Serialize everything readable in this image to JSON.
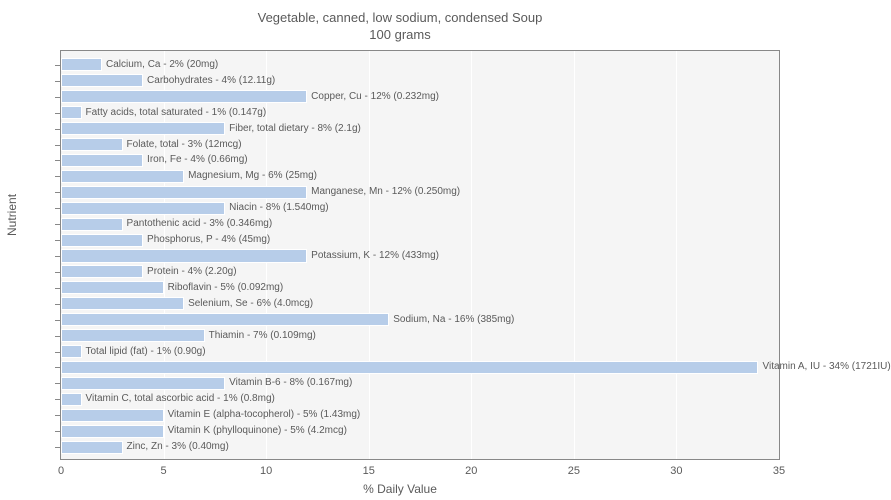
{
  "chart": {
    "type": "horizontal-bar",
    "title_line1": "Vegetable, canned, low sodium, condensed Soup",
    "title_line2": "100 grams",
    "title_fontsize": 13,
    "title_color": "#5a5a5a",
    "xlabel": "% Daily Value",
    "ylabel": "Nutrient",
    "label_fontsize": 12,
    "label_color": "#5a5a5a",
    "xlim": [
      0,
      35
    ],
    "xtick_step": 5,
    "xticks": [
      0,
      5,
      10,
      15,
      20,
      25,
      30,
      35
    ],
    "background_color": "#f5f5f5",
    "grid_color": "#ffffff",
    "bar_color": "#b7cde9",
    "bar_border_color": "#ffffff",
    "tick_fontsize": 11,
    "barlabel_fontsize": 10,
    "bars": [
      {
        "label": "Calcium, Ca - 2% (20mg)",
        "value": 2
      },
      {
        "label": "Carbohydrates - 4% (12.11g)",
        "value": 4
      },
      {
        "label": "Copper, Cu - 12% (0.232mg)",
        "value": 12
      },
      {
        "label": "Fatty acids, total saturated - 1% (0.147g)",
        "value": 1
      },
      {
        "label": "Fiber, total dietary - 8% (2.1g)",
        "value": 8
      },
      {
        "label": "Folate, total - 3% (12mcg)",
        "value": 3
      },
      {
        "label": "Iron, Fe - 4% (0.66mg)",
        "value": 4
      },
      {
        "label": "Magnesium, Mg - 6% (25mg)",
        "value": 6
      },
      {
        "label": "Manganese, Mn - 12% (0.250mg)",
        "value": 12
      },
      {
        "label": "Niacin - 8% (1.540mg)",
        "value": 8
      },
      {
        "label": "Pantothenic acid - 3% (0.346mg)",
        "value": 3
      },
      {
        "label": "Phosphorus, P - 4% (45mg)",
        "value": 4
      },
      {
        "label": "Potassium, K - 12% (433mg)",
        "value": 12
      },
      {
        "label": "Protein - 4% (2.20g)",
        "value": 4
      },
      {
        "label": "Riboflavin - 5% (0.092mg)",
        "value": 5
      },
      {
        "label": "Selenium, Se - 6% (4.0mcg)",
        "value": 6
      },
      {
        "label": "Sodium, Na - 16% (385mg)",
        "value": 16
      },
      {
        "label": "Thiamin - 7% (0.109mg)",
        "value": 7
      },
      {
        "label": "Total lipid (fat) - 1% (0.90g)",
        "value": 1
      },
      {
        "label": "Vitamin A, IU - 34% (1721IU)",
        "value": 34
      },
      {
        "label": "Vitamin B-6 - 8% (0.167mg)",
        "value": 8
      },
      {
        "label": "Vitamin C, total ascorbic acid - 1% (0.8mg)",
        "value": 1
      },
      {
        "label": "Vitamin E (alpha-tocopherol) - 5% (1.43mg)",
        "value": 5
      },
      {
        "label": "Vitamin K (phylloquinone) - 5% (4.2mcg)",
        "value": 5
      },
      {
        "label": "Zinc, Zn - 3% (0.40mg)",
        "value": 3
      }
    ]
  }
}
